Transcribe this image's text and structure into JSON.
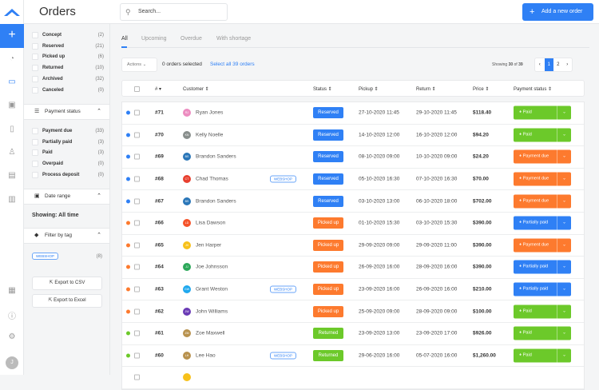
{
  "header": {
    "title": "Orders",
    "search_placeholder": "Search...",
    "add_button": "Add a new order"
  },
  "rail": {
    "avatar_initial": "J",
    "icons": [
      "dashboard-icon",
      "inbox-icon",
      "calendar-icon",
      "document-icon",
      "user-icon",
      "store-icon",
      "chart-icon",
      "grid-icon",
      "help-icon",
      "settings-icon"
    ]
  },
  "filters": {
    "order_status": [
      {
        "label": "Concept",
        "count": "(2)"
      },
      {
        "label": "Reserved",
        "count": "(21)"
      },
      {
        "label": "Picked up",
        "count": "(6)"
      },
      {
        "label": "Returned",
        "count": "(10)"
      },
      {
        "label": "Archived",
        "count": "(32)"
      },
      {
        "label": "Canceled",
        "count": "(0)"
      }
    ],
    "payment_section": "Payment status",
    "payment_status": [
      {
        "label": "Payment due",
        "count": "(33)"
      },
      {
        "label": "Partially paid",
        "count": "(3)"
      },
      {
        "label": "Paid",
        "count": "(3)"
      },
      {
        "label": "Overpaid",
        "count": "(0)"
      },
      {
        "label": "Process deposit",
        "count": "(0)"
      }
    ],
    "date_section": "Date range",
    "showing": "Showing: All time",
    "tag_section": "Filter by tag",
    "tag": "WEBSHOP",
    "tag_count": "(8)",
    "export_csv": "Export to CSV",
    "export_excel": "Export to Excel"
  },
  "tabs": [
    "All",
    "Upcoming",
    "Overdue",
    "With shortage"
  ],
  "toolbar": {
    "actions": "Actions",
    "selected": "0 orders selected",
    "select_all": "Select all 39 orders",
    "showing_prefix": "Showing",
    "showing_count": "30",
    "showing_of": "of",
    "showing_total": "39",
    "pages": [
      "‹",
      "1",
      "2",
      "›"
    ]
  },
  "columns": [
    "#",
    "Customer",
    "Status",
    "Pickup",
    "Return",
    "Price",
    "Payment status"
  ],
  "colors": {
    "accent": "#2f80f5",
    "reserved": "#2f80f5",
    "picked_up": "#fd7a2e",
    "returned": "#6cc92a",
    "paid": "#6cc92a",
    "payment_due": "#fd7a2e",
    "partially_paid": "#2f80f5"
  },
  "orders": [
    {
      "num": "#71",
      "initials": "RJ",
      "avcolor": "#ec8cc0",
      "name": "Ryan Jones",
      "tag": "",
      "status": "Reserved",
      "pickup": "27-10-2020 11:45",
      "return": "29-10-2020 11:45",
      "price": "$118.40",
      "payment": "Paid"
    },
    {
      "num": "#70",
      "initials": "KN",
      "avcolor": "#888e8c",
      "name": "Kelly Noelle",
      "tag": "",
      "status": "Reserved",
      "pickup": "14-10-2020 12:00",
      "return": "16-10-2020 12:00",
      "price": "$94.20",
      "payment": "Paid"
    },
    {
      "num": "#69",
      "initials": "BS",
      "avcolor": "#2a76b8",
      "name": "Brandon Sanders",
      "tag": "",
      "status": "Reserved",
      "pickup": "08-10-2020 09:00",
      "return": "10-10-2020 09:00",
      "price": "$24.20",
      "payment": "Payment due"
    },
    {
      "num": "#68",
      "initials": "CT",
      "avcolor": "#e8402f",
      "name": "Chad Thomas",
      "tag": "WEBSHOP",
      "status": "Reserved",
      "pickup": "05-10-2020 16:30",
      "return": "07-10-2020 16:30",
      "price": "$70.00",
      "payment": "Payment due"
    },
    {
      "num": "#67",
      "initials": "BS",
      "avcolor": "#2a76b8",
      "name": "Brandon Sanders",
      "tag": "",
      "status": "Reserved",
      "pickup": "03-10-2020 13:00",
      "return": "06-10-2020 18:00",
      "price": "$702.00",
      "payment": "Payment due"
    },
    {
      "num": "#66",
      "initials": "LD",
      "avcolor": "#f5532a",
      "name": "Lisa Dawson",
      "tag": "",
      "status": "Picked up",
      "pickup": "01-10-2020 15:30",
      "return": "03-10-2020 15:30",
      "price": "$390.00",
      "payment": "Partially paid"
    },
    {
      "num": "#65",
      "initials": "JH",
      "avcolor": "#f7c11b",
      "name": "Jen Harper",
      "tag": "",
      "status": "Picked up",
      "pickup": "29-09-2020 09:00",
      "return": "29-09-2020 11:00",
      "price": "$390.00",
      "payment": "Payment due"
    },
    {
      "num": "#64",
      "initials": "JJ",
      "avcolor": "#2da85a",
      "name": "Joe Johnsson",
      "tag": "",
      "status": "Picked up",
      "pickup": "26-09-2020 16:00",
      "return": "28-09-2020 16:00",
      "price": "$390.00",
      "payment": "Partially paid"
    },
    {
      "num": "#63",
      "initials": "GW",
      "avcolor": "#1fa8ee",
      "name": "Grant Weston",
      "tag": "WEBSHOP",
      "status": "Picked up",
      "pickup": "23-09-2020 16:00",
      "return": "26-09-2020 16:00",
      "price": "$210.00",
      "payment": "Partially paid"
    },
    {
      "num": "#62",
      "initials": "JW",
      "avcolor": "#6a3bb5",
      "name": "John Williams",
      "tag": "",
      "status": "Picked up",
      "pickup": "25-09-2020 09:00",
      "return": "28-09-2020 09:00",
      "price": "$100.00",
      "payment": "Paid"
    },
    {
      "num": "#61",
      "initials": "ZM",
      "avcolor": "#b8924e",
      "name": "Zoe Maxwell",
      "tag": "",
      "status": "Returned",
      "pickup": "23-09-2020 13:00",
      "return": "23-09-2020 17:00",
      "price": "$926.00",
      "payment": "Paid"
    },
    {
      "num": "#60",
      "initials": "LH",
      "avcolor": "#b8924e",
      "name": "Lee Hao",
      "tag": "WEBSHOP",
      "status": "Returned",
      "pickup": "29-06-2020 16:00",
      "return": "05-07-2020 16:00",
      "price": "$1,260.00",
      "payment": "Paid"
    },
    {
      "num": "",
      "initials": "",
      "avcolor": "#f7c11b",
      "name": "",
      "tag": "",
      "status": "",
      "pickup": "",
      "return": "",
      "price": "",
      "payment": ""
    }
  ]
}
